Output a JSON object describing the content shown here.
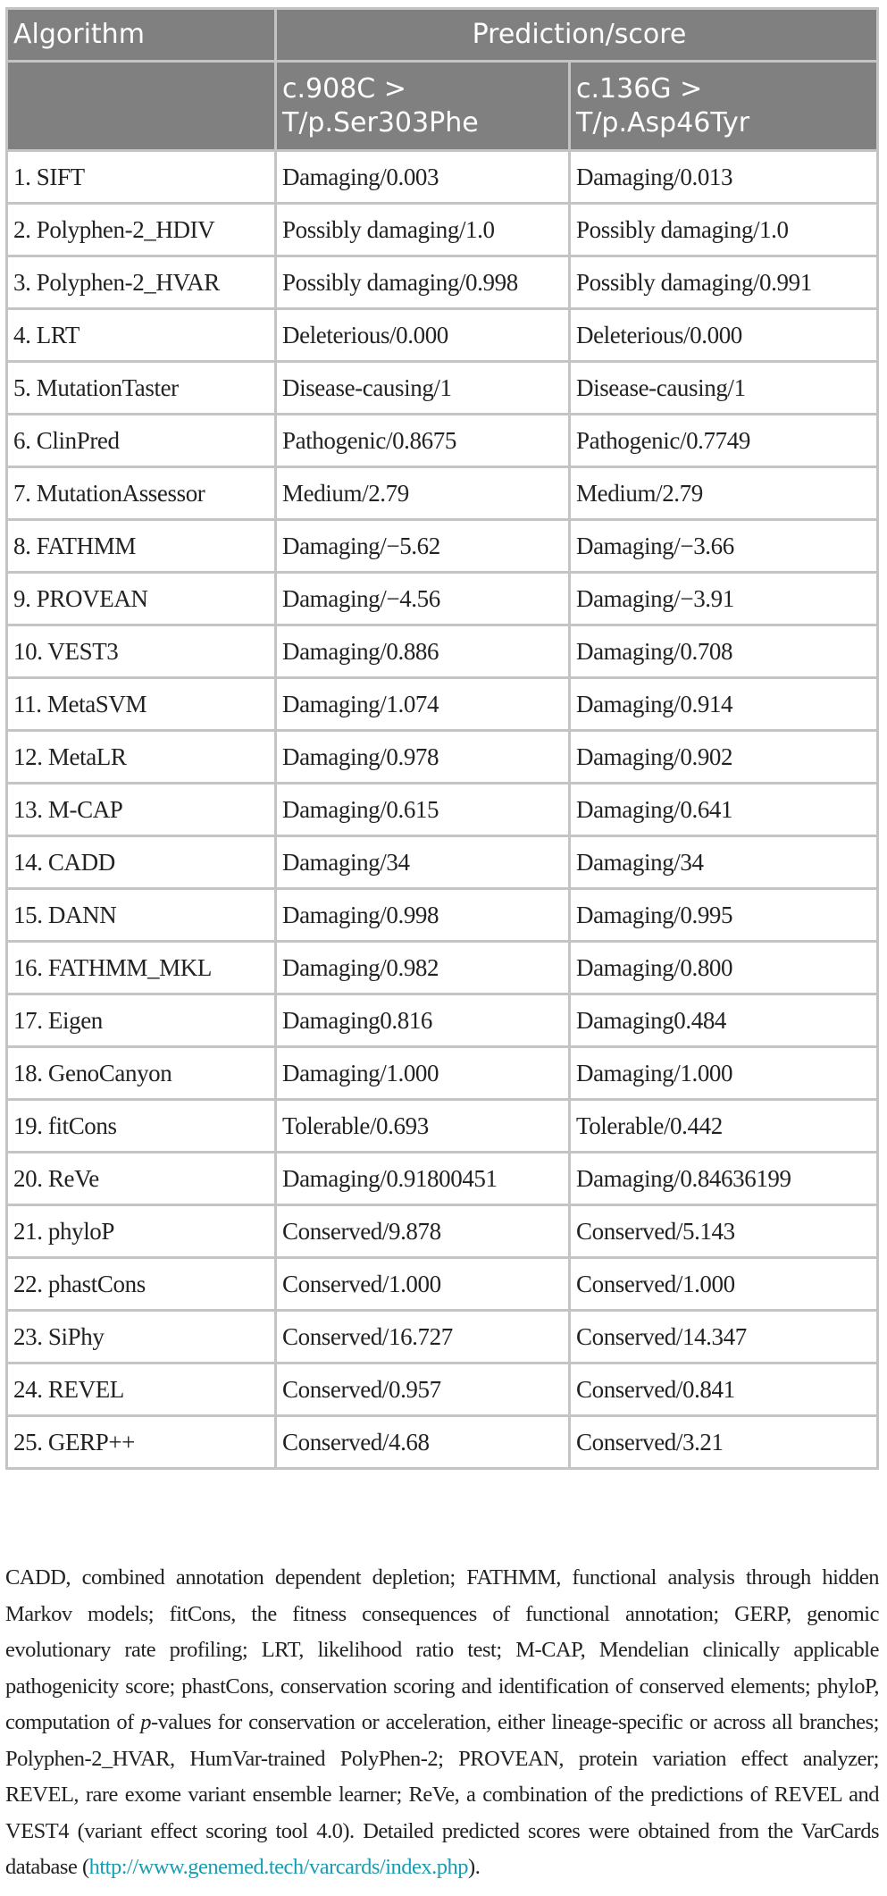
{
  "table": {
    "header": {
      "algorithm": "Algorithm",
      "prediction": "Prediction/score",
      "variant1": "c.908C > T/p.Ser303Phe",
      "variant2": "c.136G > T/p.Asp46Tyr"
    },
    "header_bg_color": "#808080",
    "rows": [
      [
        "1. SIFT",
        "Damaging/0.003",
        "Damaging/0.013"
      ],
      [
        "2. Polyphen-2_HDIV",
        "Possibly damaging/1.0",
        "Possibly damaging/1.0"
      ],
      [
        "3. Polyphen-2_HVAR",
        "Possibly damaging/0.998",
        "Possibly damaging/0.991"
      ],
      [
        "4. LRT",
        "Deleterious/0.000",
        "Deleterious/0.000"
      ],
      [
        "5. MutationTaster",
        "Disease-causing/1",
        "Disease-causing/1"
      ],
      [
        "6. ClinPred",
        "Pathogenic/0.8675",
        "Pathogenic/0.7749"
      ],
      [
        "7. MutationAssessor",
        "Medium/2.79",
        "Medium/2.79"
      ],
      [
        "8. FATHMM",
        "Damaging/−5.62",
        "Damaging/−3.66"
      ],
      [
        "9. PROVEAN",
        "Damaging/−4.56",
        "Damaging/−3.91"
      ],
      [
        "10. VEST3",
        "Damaging/0.886",
        "Damaging/0.708"
      ],
      [
        "11. MetaSVM",
        "Damaging/1.074",
        "Damaging/0.914"
      ],
      [
        "12. MetaLR",
        "Damaging/0.978",
        "Damaging/0.902"
      ],
      [
        "13. M-CAP",
        "Damaging/0.615",
        "Damaging/0.641"
      ],
      [
        "14. CADD",
        "Damaging/34",
        "Damaging/34"
      ],
      [
        "15. DANN",
        "Damaging/0.998",
        "Damaging/0.995"
      ],
      [
        "16. FATHMM_MKL",
        "Damaging/0.982",
        "Damaging/0.800"
      ],
      [
        "17. Eigen",
        "Damaging0.816",
        "Damaging0.484"
      ],
      [
        "18. GenoCanyon",
        "Damaging/1.000",
        "Damaging/1.000"
      ],
      [
        "19. fitCons",
        "Tolerable/0.693",
        "Tolerable/0.442"
      ],
      [
        "20. ReVe",
        "Damaging/0.91800451",
        "Damaging/0.84636199"
      ],
      [
        "21. phyloP",
        "Conserved/9.878",
        "Conserved/5.143"
      ],
      [
        "22. phastCons",
        "Conserved/1.000",
        "Conserved/1.000"
      ],
      [
        "23. SiPhy",
        "Conserved/16.727",
        "Conserved/14.347"
      ],
      [
        "24. REVEL",
        "Conserved/0.957",
        "Conserved/0.841"
      ],
      [
        "25. GERP++",
        "Conserved/4.68",
        "Conserved/3.21"
      ]
    ]
  },
  "footnote": {
    "text_before_italic": "CADD, combined annotation dependent depletion; FATHMM, functional analysis through hidden Markov models; fitCons, the fitness consequences of functional annotation; GERP, genomic evolutionary rate profiling; LRT, likelihood ratio test; M-CAP, Mendelian clinically applicable pathogenicity score; phastCons, conservation scoring and identification of conserved elements; phyloP, computation of ",
    "italic": "p",
    "text_after_italic": "-values for conservation or acceleration, either lineage-specific or across all branches; Polyphen-2_HVAR, HumVar-trained PolyPhen-2; PROVEAN, protein variation effect analyzer; REVEL, rare exome variant ensemble learner; ReVe, a combination of the predictions of REVEL and VEST4 (variant effect scoring tool 4.0). Detailed predicted scores were obtained from the VarCards database (",
    "link": "http://www.genemed.tech/varcards/index.php",
    "text_end": ").",
    "link_color": "#1a9cb0"
  }
}
